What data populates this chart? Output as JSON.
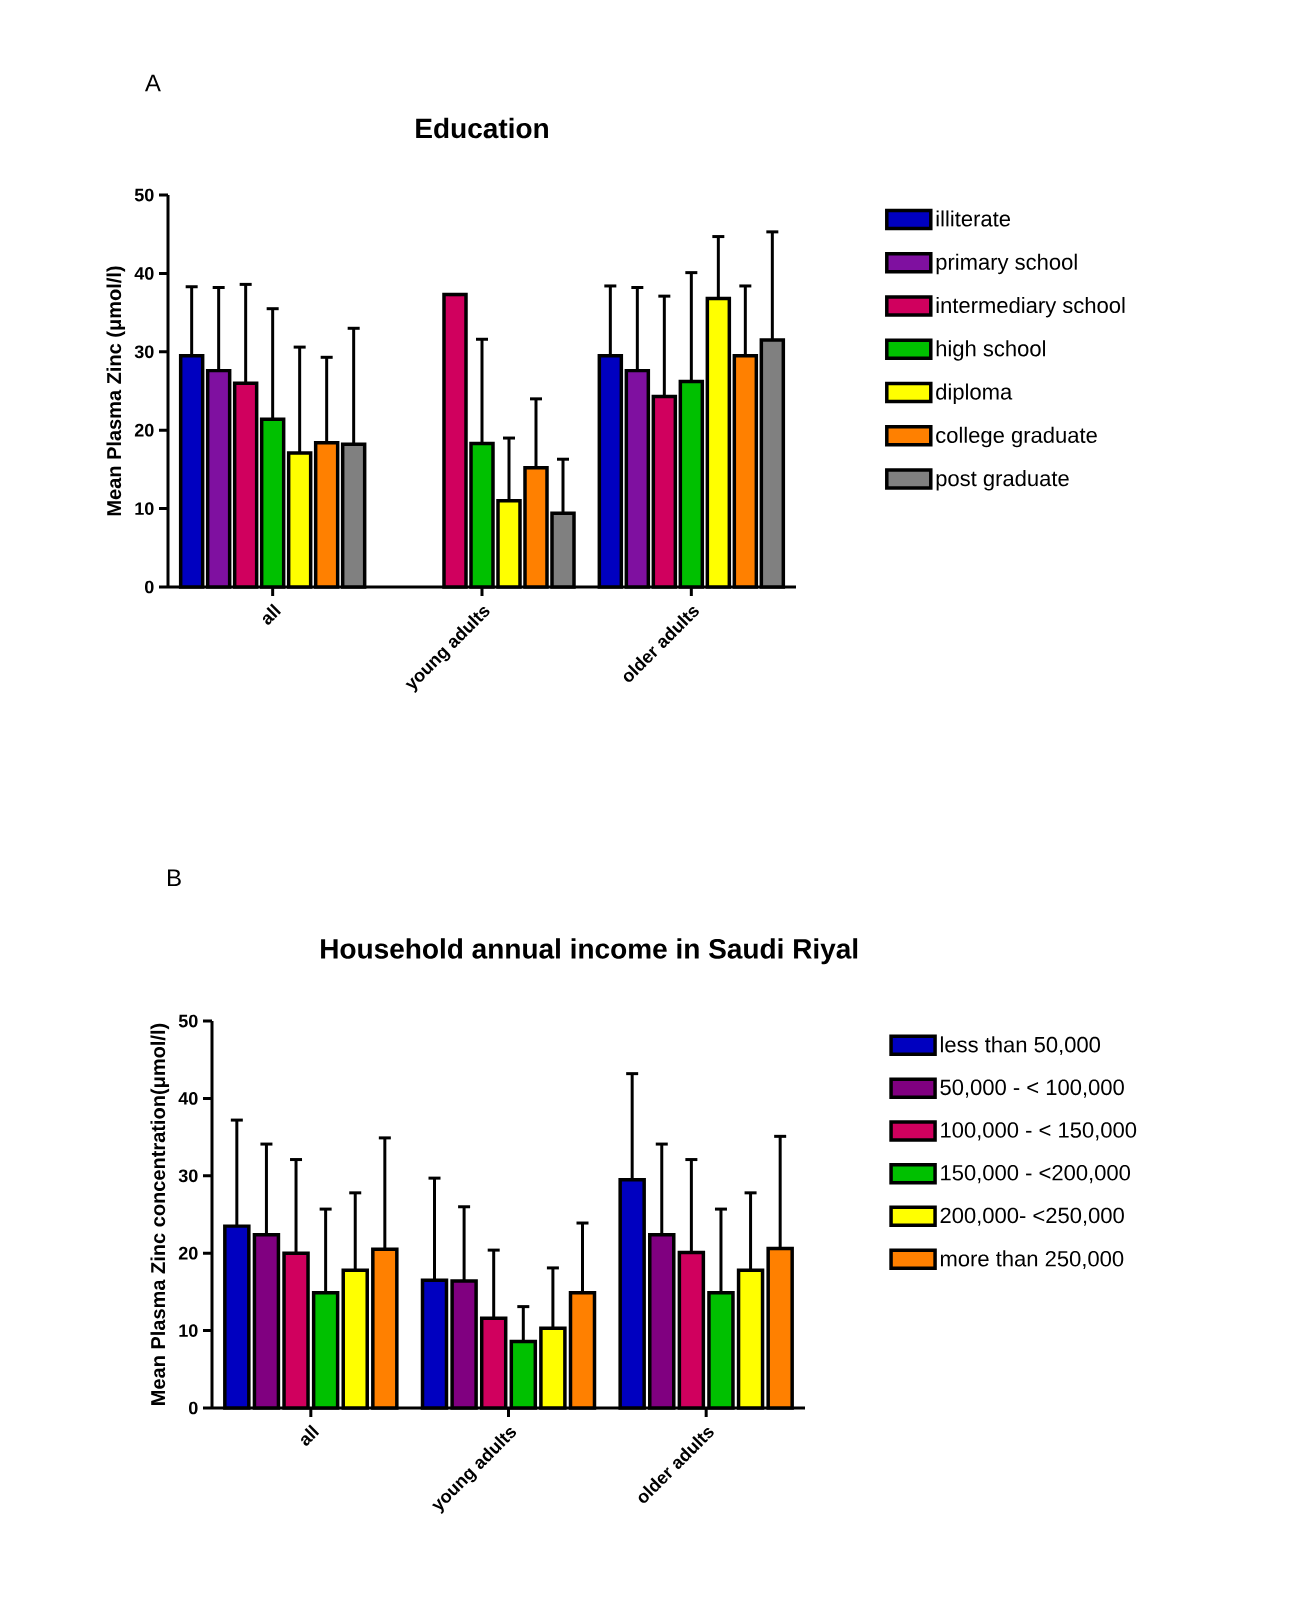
{
  "chart_data": [
    {
      "type": "bar",
      "title": "Education",
      "ylabel": "Mean Plasma Zinc (μmol/l)",
      "annotations": [
        "A"
      ],
      "categories": [
        "all",
        "young adults",
        "older adults"
      ],
      "ylim": [
        0,
        50
      ],
      "yticks": [
        0,
        10,
        20,
        30,
        40,
        50
      ],
      "legend": "right",
      "series": [
        {
          "name": "illiterate",
          "color": "#0000c0",
          "values": [
            29.5,
            null,
            29.5
          ],
          "errors": [
            8.8,
            null,
            8.9
          ]
        },
        {
          "name": "primary school",
          "color": "#7f10a0",
          "values": [
            27.6,
            null,
            27.6
          ],
          "errors": [
            10.6,
            null,
            10.6
          ]
        },
        {
          "name": "intermediary school",
          "color": "#d0005e",
          "values": [
            26.0,
            37.3,
            24.3
          ],
          "errors": [
            12.6,
            null,
            12.8
          ]
        },
        {
          "name": "high school",
          "color": "#00c000",
          "values": [
            21.4,
            18.3,
            26.2
          ],
          "errors": [
            14.1,
            13.3,
            13.9
          ]
        },
        {
          "name": "diploma",
          "color": "#ffff00",
          "values": [
            17.1,
            11.0,
            36.8
          ],
          "errors": [
            13.5,
            8.0,
            7.9
          ]
        },
        {
          "name": "college graduate",
          "color": "#ff8000",
          "values": [
            18.4,
            15.2,
            29.5
          ],
          "errors": [
            10.9,
            8.8,
            8.9
          ]
        },
        {
          "name": "post graduate",
          "color": "#808080",
          "values": [
            18.2,
            9.4,
            31.5
          ],
          "errors": [
            14.8,
            6.9,
            13.8
          ]
        }
      ]
    },
    {
      "type": "bar",
      "title": "Household annual income in Saudi Riyal",
      "ylabel": "Mean Plasma Zinc concentration(μmol/l)",
      "annotations": [
        "B"
      ],
      "categories": [
        "all",
        "young adults",
        "older adults"
      ],
      "ylim": [
        0,
        50
      ],
      "yticks": [
        0,
        10,
        20,
        30,
        40,
        50
      ],
      "legend": "right",
      "series": [
        {
          "name": "less than 50,000",
          "color": "#0000c0",
          "values": [
            23.5,
            16.5,
            29.5
          ],
          "errors": [
            13.7,
            13.2,
            13.7
          ]
        },
        {
          "name": "50,000 - < 100,000",
          "color": "#800080",
          "values": [
            22.4,
            16.4,
            22.4
          ],
          "errors": [
            11.7,
            9.6,
            11.7
          ]
        },
        {
          "name": "100,000 - < 150,000",
          "color": "#d0005e",
          "values": [
            20.0,
            11.6,
            20.1
          ],
          "errors": [
            12.1,
            8.8,
            12.0
          ]
        },
        {
          "name": "150,000 - <200,000",
          "color": "#00c000",
          "values": [
            14.9,
            8.6,
            14.9
          ],
          "errors": [
            10.8,
            4.5,
            10.8
          ]
        },
        {
          "name": "200,000- <250,000",
          "color": "#ffff00",
          "values": [
            17.8,
            10.3,
            17.8
          ],
          "errors": [
            10.0,
            7.8,
            10.0
          ]
        },
        {
          "name": "more than 250,000",
          "color": "#ff8000",
          "values": [
            20.5,
            14.9,
            20.6
          ],
          "errors": [
            14.4,
            9.0,
            14.5
          ]
        }
      ]
    }
  ]
}
